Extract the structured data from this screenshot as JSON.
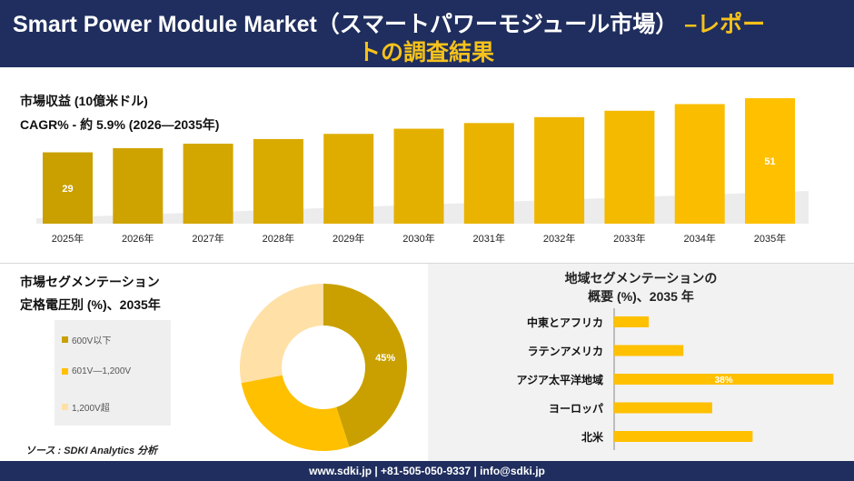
{
  "header": {
    "title_line1_main": "Smart Power Module Market（スマートパワーモジュール市場）",
    "title_line1_accent": " –レポー",
    "title_line2": "トの調査結果"
  },
  "revenue": {
    "title": "市場収益 (10億米ドル)",
    "cagr": "CAGR% - 約 5.9% (2026—2035年)"
  },
  "segment": {
    "title1": "市場セグメンテーション",
    "title2": "定格電圧別 (%)、2035年",
    "source": "ソース : SDKI Analytics 分析"
  },
  "region": {
    "title1": "地域セグメンテーションの",
    "title2": "概要 (%)、2035 年"
  },
  "footer": {
    "text": "www.sdki.jp | +81-505-050-9337 | info@sdki.jp"
  },
  "colors": {
    "navy": "#1f2e5e",
    "gold": "#f6c21b",
    "bar_dark": "#c9a000",
    "bar_light": "#ffc000"
  },
  "chart_data": [
    {
      "type": "bar",
      "title": "市場収益 (10億米ドル)",
      "categories": [
        "2025年",
        "2026年",
        "2027年",
        "2028年",
        "2029年",
        "2030年",
        "2031年",
        "2032年",
        "2033年",
        "2034年",
        "2035年"
      ],
      "values": [
        29,
        30.7,
        32.5,
        34.4,
        36.5,
        38.6,
        40.9,
        43.3,
        45.9,
        48.6,
        51
      ],
      "data_labels": {
        "2025年": "29",
        "2035年": "51"
      },
      "ylim": [
        0,
        51
      ],
      "grid": false,
      "legend": "none"
    },
    {
      "type": "pie",
      "variant": "donut",
      "legend": "left",
      "categories": [
        "600V以下",
        "601V—1,200V",
        "1,200V超"
      ],
      "values": [
        45,
        27,
        28
      ],
      "data_labels": [
        "45%",
        "",
        ""
      ],
      "colors": [
        "#c9a000",
        "#ffc000",
        "#ffe0a6"
      ]
    },
    {
      "type": "bar",
      "orientation": "horizontal",
      "categories": [
        "中東とアフリカ",
        "ラテンアメリカ",
        "アジア太平洋地域",
        "ヨーロッパ",
        "北米"
      ],
      "values": [
        6,
        12,
        38,
        17,
        24
      ],
      "data_labels": [
        "",
        "",
        "38%",
        "",
        ""
      ],
      "xlim": [
        0,
        40
      ],
      "grid": false,
      "legend": "none"
    }
  ]
}
